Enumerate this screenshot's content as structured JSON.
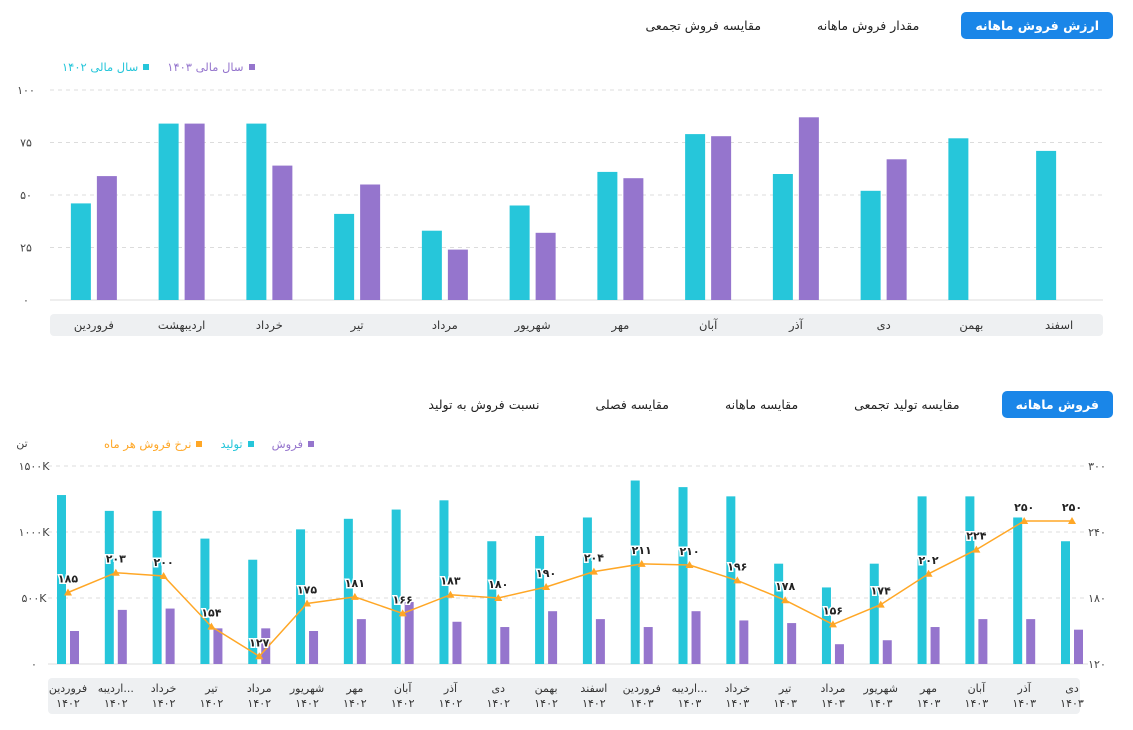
{
  "top_tabs": [
    {
      "label": "ارزش فروش ماهانه",
      "active": true
    },
    {
      "label": "مقدار فروش ماهانه",
      "active": false
    },
    {
      "label": "مقایسه فروش تجمعی",
      "active": false
    }
  ],
  "bottom_tabs": [
    {
      "label": "فروش ماهانه",
      "active": true
    },
    {
      "label": "مقایسه تولید تجمعی",
      "active": false
    },
    {
      "label": "مقایسه ماهانه",
      "active": false
    },
    {
      "label": "مقایسه فصلی",
      "active": false
    },
    {
      "label": "نسبت فروش به تولید",
      "active": false
    }
  ],
  "colors": {
    "teal": "#26c6da",
    "purple": "#9575cd",
    "orange": "#ffa726",
    "accent": "#1a86e8"
  },
  "chart_data": [
    {
      "type": "bar",
      "categories": [
        "فروردین",
        "اردیبهشت",
        "خرداد",
        "تیر",
        "مرداد",
        "شهریور",
        "مهر",
        "آبان",
        "آذر",
        "دی",
        "بهمن",
        "اسفند"
      ],
      "series": [
        {
          "name": "سال مالی ۱۴۰۲",
          "color": "#26c6da",
          "values": [
            46,
            84,
            84,
            41,
            33,
            45,
            61,
            79,
            60,
            52,
            77,
            71
          ]
        },
        {
          "name": "سال مالی ۱۴۰۳",
          "color": "#9575cd",
          "values": [
            59,
            84,
            64,
            55,
            24,
            32,
            58,
            78,
            87,
            67,
            null,
            null
          ]
        }
      ],
      "ylim": [
        0,
        100
      ],
      "yticks": [
        "۱۰۰",
        "۷۵",
        "۵۰",
        "۲۵",
        "۰"
      ],
      "ytick_values": [
        100,
        75,
        50,
        25,
        0
      ],
      "grid": true,
      "legend_position": "top-left"
    },
    {
      "type": "bar",
      "categories": [
        "فروردین ۱۴۰۲",
        "اردیبه... ۱۴۰۲",
        "خرداد ۱۴۰۲",
        "تیر ۱۴۰۲",
        "مرداد ۱۴۰۲",
        "شهریور ۱۴۰۲",
        "مهر ۱۴۰۲",
        "آبان ۱۴۰۲",
        "آذر ۱۴۰۲",
        "دی ۱۴۰۲",
        "بهمن ۱۴۰۲",
        "اسفند ۱۴۰۲",
        "فروردین ۱۴۰۳",
        "اردیبه... ۱۴۰۳",
        "خرداد ۱۴۰۳",
        "تیر ۱۴۰۳",
        "مرداد ۱۴۰۳",
        "شهریور ۱۴۰۳",
        "مهر ۱۴۰۳",
        "آبان ۱۴۰۳",
        "آذر ۱۴۰۳",
        "دی ۱۴۰۳"
      ],
      "series": [
        {
          "name": "تولید",
          "color": "#26c6da",
          "values": [
            1280,
            1160,
            1160,
            950,
            790,
            1020,
            1100,
            1170,
            1240,
            930,
            970,
            1110,
            1390,
            1340,
            1270,
            760,
            580,
            760,
            1270,
            1270,
            1110,
            930
          ]
        },
        {
          "name": "فروش",
          "color": "#9575cd",
          "values": [
            250,
            410,
            420,
            270,
            270,
            250,
            340,
            470,
            320,
            280,
            400,
            340,
            280,
            400,
            330,
            310,
            150,
            180,
            280,
            340,
            340,
            260
          ]
        },
        {
          "name": "نرخ فروش هر ماه",
          "color": "#ffa726",
          "type": "line",
          "values": [
            185,
            203,
            200,
            154,
            127,
            175,
            181,
            166,
            183,
            180,
            190,
            204,
            211,
            210,
            196,
            178,
            156,
            174,
            202,
            224,
            250,
            250
          ]
        }
      ],
      "ylim": [
        0,
        1500
      ],
      "yticks": [
        "۱۵۰۰K",
        "۱۰۰۰K",
        "۵۰۰K",
        "۰"
      ],
      "ytick_values": [
        1500,
        1000,
        500,
        0
      ],
      "y_unit": "تن",
      "y2lim": [
        120,
        300
      ],
      "y2ticks": [
        "۳۰۰",
        "۲۴۰",
        "۱۸۰",
        "۱۲۰"
      ],
      "y2tick_values": [
        300,
        240,
        180,
        120
      ],
      "line_labels": [
        "۱۸۵",
        "۲۰۳",
        "۲۰۰",
        "۱۵۴",
        "۱۲۷",
        "۱۷۵",
        "۱۸۱",
        "۱۶۶",
        "۱۸۳",
        "۱۸۰",
        "۱۹۰",
        "۲۰۴",
        "۲۱۱",
        "۲۱۰",
        "۱۹۶",
        "۱۷۸",
        "۱۵۶",
        "۱۷۴",
        "۲۰۲",
        "۲۲۴",
        "۲۵۰",
        "۲۵۰"
      ],
      "grid": true,
      "legend_position": "top-left"
    }
  ]
}
